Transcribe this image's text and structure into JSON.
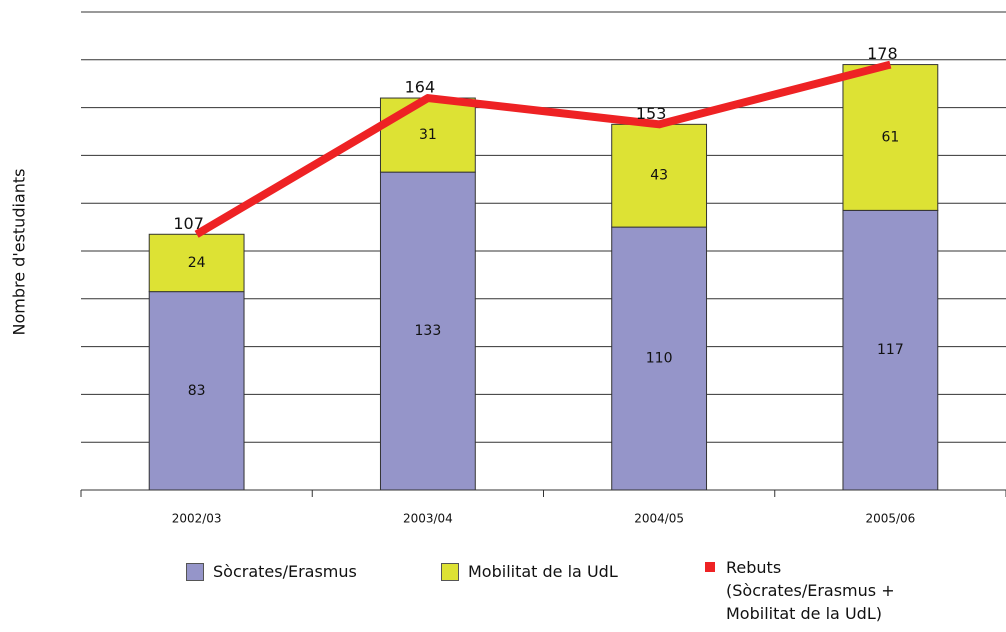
{
  "chart_data": {
    "type": "bar",
    "stacked": true,
    "y_label": "Nombre d'estudiants",
    "categories": [
      "2002/03",
      "2003/04",
      "2004/05",
      "2005/06"
    ],
    "series": [
      {
        "name": "Sòcrates/Erasmus",
        "type": "bar",
        "color": "#9595c9",
        "values": [
          83,
          133,
          110,
          117
        ]
      },
      {
        "name": "Mobilitat de la UdL",
        "type": "bar",
        "color": "#dde234",
        "values": [
          24,
          31,
          43,
          61
        ]
      },
      {
        "name": "Rebuts (Sòcrates/Erasmus + Mobilitat de la UdL)",
        "type": "line",
        "color": "#ee2224",
        "values": [
          107,
          164,
          153,
          178
        ]
      }
    ],
    "ylim": [
      0,
      200
    ],
    "yticks": [
      0,
      20,
      40,
      60,
      80,
      100,
      120,
      140,
      160,
      180,
      200
    ],
    "grid": true
  }
}
